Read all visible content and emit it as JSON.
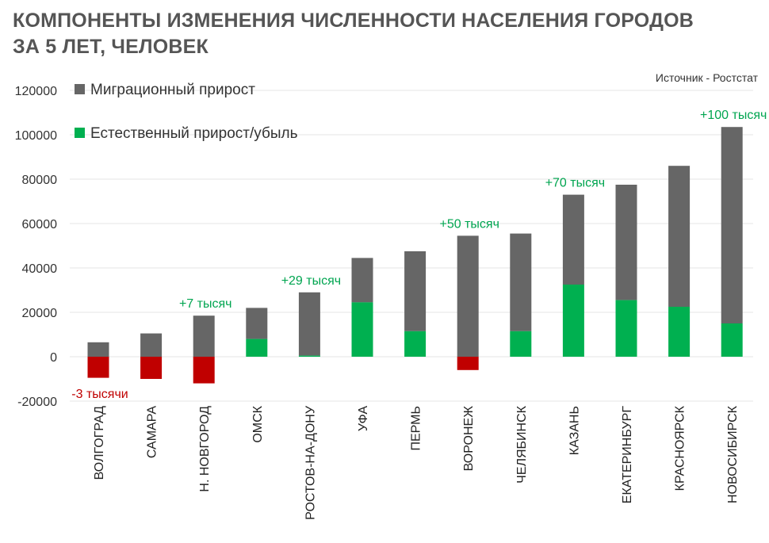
{
  "title_lines": [
    "КОМПОНЕНТЫ ИЗМЕНЕНИЯ ЧИСЛЕННОСТИ НАСЕЛЕНИЯ ГОРОДОВ",
    "ЗА 5 ЛЕТ, ЧЕЛОВЕК"
  ],
  "source": "Источник - Ростстат",
  "colors": {
    "migration": "#666666",
    "natural_positive": "#00b050",
    "natural_negative": "#c00000",
    "anno_positive": "#00a550",
    "anno_negative": "#c00000",
    "grid": "#e6e6e6"
  },
  "chart_data": {
    "type": "bar",
    "stacked": true,
    "title": "КОМПОНЕНТЫ ИЗМЕНЕНИЯ ЧИСЛЕННОСТИ НАСЕЛЕНИЯ ГОРОДОВ ЗА 5 ЛЕТ, ЧЕЛОВЕК",
    "categories": [
      "ВОЛГОГРАД",
      "САМАРА",
      "Н. НОВГОРОД",
      "ОМСК",
      "РОСТОВ-НА-ДОНУ",
      "УФА",
      "ПЕРМЬ",
      "ВОРОНЕЖ",
      "ЧЕЛЯБИНСК",
      "КАЗАНЬ",
      "ЕКАТЕРИНБУРГ",
      "КРАСНОЯРСК",
      "НОВОСИБИРСК"
    ],
    "series": [
      {
        "name": "Миграционный прирост",
        "values": [
          6500,
          10500,
          18500,
          14000,
          28500,
          20000,
          36000,
          54500,
          44000,
          40500,
          52000,
          63500,
          88500
        ]
      },
      {
        "name": "Естественный прирост/убыль",
        "values": [
          -9500,
          -10000,
          -12000,
          8000,
          500,
          24500,
          11500,
          -6000,
          11500,
          32500,
          25500,
          22500,
          15000
        ]
      }
    ],
    "ylim": [
      -20000,
      120000
    ],
    "yticks": [
      -20000,
      0,
      20000,
      40000,
      60000,
      80000,
      100000,
      120000
    ],
    "grid": true,
    "legend_position": "top-left",
    "annotations": [
      {
        "category": "ВОЛГОГРАД",
        "text": "-3 тысячи",
        "sign": "negative"
      },
      {
        "category": "Н. НОВГОРОД",
        "text": "+7 тысяч",
        "sign": "positive"
      },
      {
        "category": "РОСТОВ-НА-ДОНУ",
        "text": "+29 тысяч",
        "sign": "positive"
      },
      {
        "category": "ВОРОНЕЖ",
        "text": "+50 тысяч",
        "sign": "positive"
      },
      {
        "category": "КАЗАНЬ",
        "text": "+70 тысяч",
        "sign": "positive"
      },
      {
        "category": "НОВОСИБИРСК",
        "text": "+100 тысяч",
        "sign": "positive"
      }
    ]
  }
}
